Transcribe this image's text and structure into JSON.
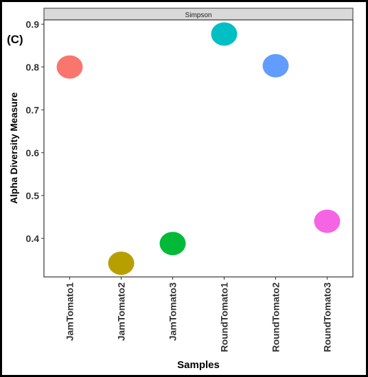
{
  "panel_label": "(C)",
  "chart_data": {
    "type": "scatter",
    "facet_title": "Simpson",
    "xlabel": "Samples",
    "ylabel": "Alpha Diversity Measure",
    "categories": [
      "JamTomato1",
      "JamTomato2",
      "JamTomato3",
      "RoundTomato1",
      "RoundTomato2",
      "RoundTomato3"
    ],
    "values": [
      0.8,
      0.342,
      0.388,
      0.877,
      0.803,
      0.44
    ],
    "colors": [
      "#F8766D",
      "#B79F00",
      "#00BA38",
      "#00BFC4",
      "#619CFF",
      "#F564E3"
    ],
    "y_ticks": [
      0.4,
      0.5,
      0.6,
      0.7,
      0.8,
      0.9
    ],
    "y_tick_labels": [
      "0.4",
      "0.5",
      "0.6",
      "0.7",
      "0.8",
      "0.9"
    ],
    "ylim": [
      0.31,
      0.91
    ],
    "grid": false,
    "legend": "none"
  }
}
